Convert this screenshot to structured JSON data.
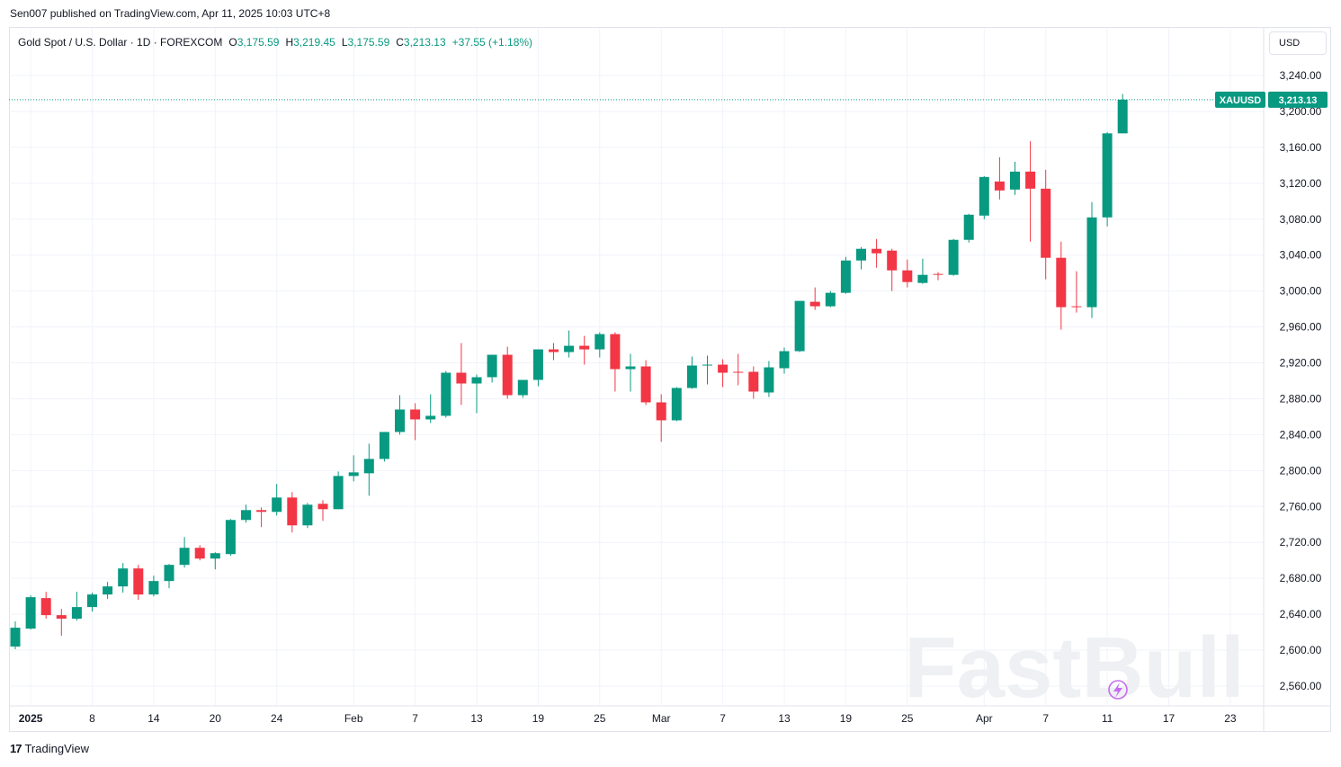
{
  "header": {
    "published_text": "Sen007 published on TradingView.com, Apr 11, 2025 10:03 UTC+8"
  },
  "legend": {
    "instrument": "Gold Spot / U.S. Dollar · 1D · FOREXCOM",
    "open_label": "O",
    "open": "3,175.59",
    "high_label": "H",
    "high": "3,219.45",
    "low_label": "L",
    "low": "3,175.59",
    "close_label": "C",
    "close": "3,213.13",
    "change": "+37.55 (+1.18%)"
  },
  "currency_button": "USD",
  "price_tag": {
    "symbol": "XAUUSD",
    "price": "3,213.13",
    "value": 3213.13
  },
  "footer": {
    "brand": "TradingView"
  },
  "watermark": "FastBull",
  "colors": {
    "up": "#089981",
    "down": "#f23645",
    "grid": "#f0f3fa",
    "axis_text": "#131722"
  },
  "chart_data": {
    "type": "candlestick",
    "title": "Gold Spot / U.S. Dollar · 1D · FOREXCOM",
    "ylim": [
      2540,
      3260
    ],
    "y_ticks": [
      2560,
      2600,
      2640,
      2680,
      2720,
      2760,
      2800,
      2840,
      2880,
      2920,
      2960,
      3000,
      3040,
      3080,
      3120,
      3160,
      3200,
      3240
    ],
    "y_tick_labels": [
      "2,560.00",
      "2,600.00",
      "2,640.00",
      "2,680.00",
      "2,720.00",
      "2,760.00",
      "2,800.00",
      "2,840.00",
      "2,880.00",
      "2,920.00",
      "2,960.00",
      "3,000.00",
      "3,040.00",
      "3,080.00",
      "3,120.00",
      "3,160.00",
      "3,200.00",
      "3,240.00"
    ],
    "x_tick_labels": [
      {
        "label": "2025",
        "index": 1,
        "bold": true
      },
      {
        "label": "8",
        "index": 5
      },
      {
        "label": "14",
        "index": 9
      },
      {
        "label": "20",
        "index": 13
      },
      {
        "label": "24",
        "index": 17
      },
      {
        "label": "Feb",
        "index": 22
      },
      {
        "label": "7",
        "index": 26
      },
      {
        "label": "13",
        "index": 30
      },
      {
        "label": "19",
        "index": 34
      },
      {
        "label": "25",
        "index": 38
      },
      {
        "label": "Mar",
        "index": 42
      },
      {
        "label": "7",
        "index": 46
      },
      {
        "label": "13",
        "index": 50
      },
      {
        "label": "19",
        "index": 54
      },
      {
        "label": "25",
        "index": 58
      },
      {
        "label": "Apr",
        "index": 63
      },
      {
        "label": "7",
        "index": 67
      },
      {
        "label": "11",
        "index": 71
      },
      {
        "label": "17",
        "index": 75
      },
      {
        "label": "23",
        "index": 79
      }
    ],
    "candles": [
      {
        "o": 2604,
        "h": 2632,
        "l": 2601,
        "c": 2625
      },
      {
        "o": 2624,
        "h": 2661,
        "l": 2623,
        "c": 2659
      },
      {
        "o": 2658,
        "h": 2665,
        "l": 2635,
        "c": 2639
      },
      {
        "o": 2639,
        "h": 2646,
        "l": 2616,
        "c": 2635
      },
      {
        "o": 2635,
        "h": 2665,
        "l": 2633,
        "c": 2648
      },
      {
        "o": 2648,
        "h": 2664,
        "l": 2643,
        "c": 2662
      },
      {
        "o": 2662,
        "h": 2676,
        "l": 2657,
        "c": 2671
      },
      {
        "o": 2671,
        "h": 2697,
        "l": 2664,
        "c": 2691
      },
      {
        "o": 2691,
        "h": 2695,
        "l": 2656,
        "c": 2662
      },
      {
        "o": 2662,
        "h": 2683,
        "l": 2660,
        "c": 2677
      },
      {
        "o": 2677,
        "h": 2696,
        "l": 2669,
        "c": 2695
      },
      {
        "o": 2695,
        "h": 2726,
        "l": 2692,
        "c": 2714
      },
      {
        "o": 2714,
        "h": 2717,
        "l": 2700,
        "c": 2702
      },
      {
        "o": 2702,
        "h": 2709,
        "l": 2690,
        "c": 2708
      },
      {
        "o": 2707,
        "h": 2746,
        "l": 2705,
        "c": 2745
      },
      {
        "o": 2745,
        "h": 2762,
        "l": 2742,
        "c": 2756
      },
      {
        "o": 2756,
        "h": 2759,
        "l": 2737,
        "c": 2754
      },
      {
        "o": 2754,
        "h": 2785,
        "l": 2750,
        "c": 2770
      },
      {
        "o": 2770,
        "h": 2776,
        "l": 2731,
        "c": 2739
      },
      {
        "o": 2739,
        "h": 2764,
        "l": 2736,
        "c": 2762
      },
      {
        "o": 2763,
        "h": 2767,
        "l": 2744,
        "c": 2757
      },
      {
        "o": 2757,
        "h": 2799,
        "l": 2757,
        "c": 2794
      },
      {
        "o": 2794,
        "h": 2817,
        "l": 2788,
        "c": 2798
      },
      {
        "o": 2797,
        "h": 2830,
        "l": 2772,
        "c": 2813
      },
      {
        "o": 2813,
        "h": 2843,
        "l": 2810,
        "c": 2843
      },
      {
        "o": 2843,
        "h": 2884,
        "l": 2840,
        "c": 2868
      },
      {
        "o": 2868,
        "h": 2875,
        "l": 2834,
        "c": 2857
      },
      {
        "o": 2857,
        "h": 2885,
        "l": 2853,
        "c": 2861
      },
      {
        "o": 2861,
        "h": 2911,
        "l": 2859,
        "c": 2909
      },
      {
        "o": 2909,
        "h": 2942,
        "l": 2873,
        "c": 2897
      },
      {
        "o": 2897,
        "h": 2907,
        "l": 2864,
        "c": 2904
      },
      {
        "o": 2904,
        "h": 2929,
        "l": 2898,
        "c": 2929
      },
      {
        "o": 2929,
        "h": 2938,
        "l": 2880,
        "c": 2884
      },
      {
        "o": 2884,
        "h": 2899,
        "l": 2881,
        "c": 2901
      },
      {
        "o": 2901,
        "h": 2935,
        "l": 2894,
        "c": 2935
      },
      {
        "o": 2935,
        "h": 2942,
        "l": 2923,
        "c": 2932
      },
      {
        "o": 2932,
        "h": 2956,
        "l": 2926,
        "c": 2939
      },
      {
        "o": 2939,
        "h": 2950,
        "l": 2918,
        "c": 2935
      },
      {
        "o": 2935,
        "h": 2954,
        "l": 2926,
        "c": 2952
      },
      {
        "o": 2952,
        "h": 2954,
        "l": 2888,
        "c": 2913
      },
      {
        "o": 2913,
        "h": 2930,
        "l": 2888,
        "c": 2916
      },
      {
        "o": 2916,
        "h": 2923,
        "l": 2873,
        "c": 2876
      },
      {
        "o": 2876,
        "h": 2885,
        "l": 2832,
        "c": 2856
      },
      {
        "o": 2856,
        "h": 2893,
        "l": 2855,
        "c": 2892
      },
      {
        "o": 2892,
        "h": 2927,
        "l": 2891,
        "c": 2917
      },
      {
        "o": 2917,
        "h": 2928,
        "l": 2896,
        "c": 2918
      },
      {
        "o": 2918,
        "h": 2924,
        "l": 2893,
        "c": 2909
      },
      {
        "o": 2910,
        "h": 2930,
        "l": 2895,
        "c": 2909
      },
      {
        "o": 2910,
        "h": 2916,
        "l": 2880,
        "c": 2888
      },
      {
        "o": 2887,
        "h": 2922,
        "l": 2882,
        "c": 2915
      },
      {
        "o": 2914,
        "h": 2937,
        "l": 2908,
        "c": 2933
      },
      {
        "o": 2933,
        "h": 2989,
        "l": 2932,
        "c": 2989
      },
      {
        "o": 2988,
        "h": 3004,
        "l": 2979,
        "c": 2983
      },
      {
        "o": 2983,
        "h": 3000,
        "l": 2982,
        "c": 2998
      },
      {
        "o": 2998,
        "h": 3038,
        "l": 2997,
        "c": 3034
      },
      {
        "o": 3034,
        "h": 3049,
        "l": 3024,
        "c": 3047
      },
      {
        "o": 3047,
        "h": 3058,
        "l": 3026,
        "c": 3042
      },
      {
        "o": 3045,
        "h": 3047,
        "l": 3000,
        "c": 3023
      },
      {
        "o": 3023,
        "h": 3035,
        "l": 3004,
        "c": 3010
      },
      {
        "o": 3009,
        "h": 3036,
        "l": 3008,
        "c": 3018
      },
      {
        "o": 3019,
        "h": 3021,
        "l": 3012,
        "c": 3018
      },
      {
        "o": 3018,
        "h": 3058,
        "l": 3017,
        "c": 3057
      },
      {
        "o": 3057,
        "h": 3086,
        "l": 3054,
        "c": 3085
      },
      {
        "o": 3084,
        "h": 3128,
        "l": 3080,
        "c": 3127
      },
      {
        "o": 3122,
        "h": 3149,
        "l": 3102,
        "c": 3112
      },
      {
        "o": 3113,
        "h": 3144,
        "l": 3107,
        "c": 3133
      },
      {
        "o": 3133,
        "h": 3167,
        "l": 3055,
        "c": 3114
      },
      {
        "o": 3114,
        "h": 3135,
        "l": 3013,
        "c": 3037
      },
      {
        "o": 3037,
        "h": 3055,
        "l": 2957,
        "c": 2982
      },
      {
        "o": 2983,
        "h": 3022,
        "l": 2976,
        "c": 2982
      },
      {
        "o": 2982,
        "h": 3099,
        "l": 2970,
        "c": 3082
      },
      {
        "o": 3082,
        "h": 3177,
        "l": 3072,
        "c": 3175.59
      },
      {
        "o": 3175.59,
        "h": 3219.45,
        "l": 3175.59,
        "c": 3213.13
      }
    ]
  }
}
